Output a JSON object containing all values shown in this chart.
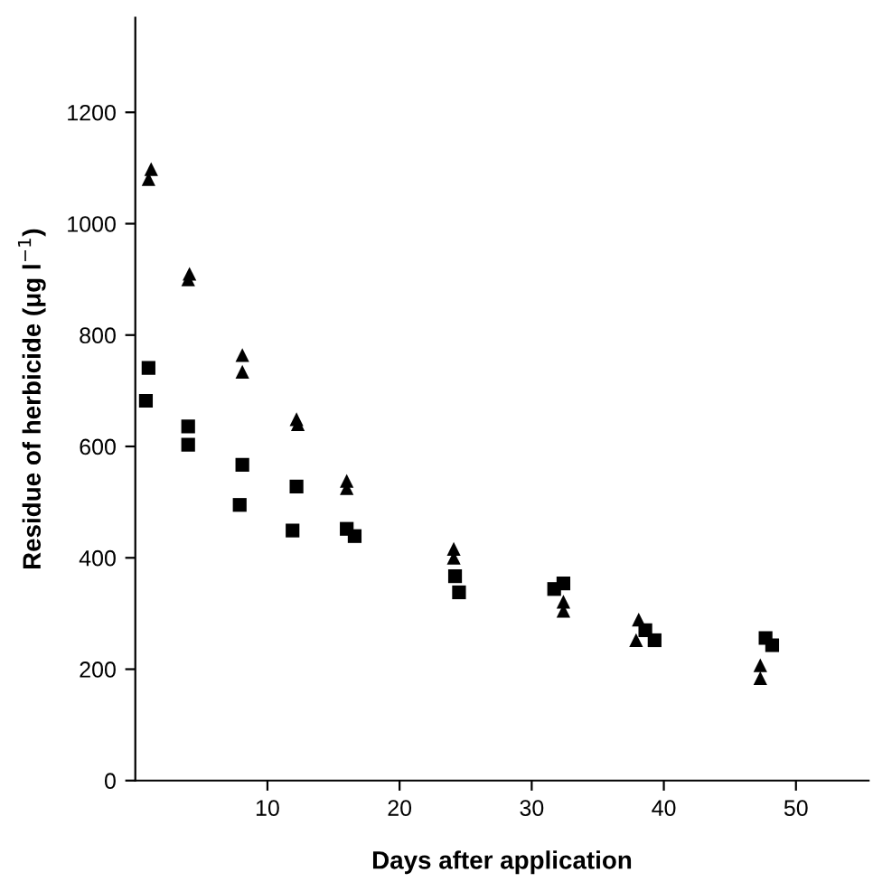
{
  "chart_data": {
    "type": "scatter",
    "xlabel": "Days after application",
    "ylabel": "Residue of herbicide (μg l$^{−1}$)",
    "xlim": [
      0,
      55.5
    ],
    "ylim": [
      0,
      1370
    ],
    "xticks": [
      10,
      20,
      30,
      40,
      50
    ],
    "yticks": [
      0,
      200,
      400,
      600,
      800,
      1000,
      1200
    ],
    "grid": false,
    "legend": false,
    "series": [
      {
        "color": "#000000",
        "marker": "triangle",
        "x": [
          1,
          1.2,
          4,
          4.1,
          8.1,
          8.1,
          12.2,
          12.3,
          16,
          16,
          24.1,
          24.1,
          32.4,
          32.4,
          38.1,
          37.9,
          47.3,
          47.3
        ],
        "values": [
          1080,
          1098,
          900,
          910,
          764,
          734,
          649,
          640,
          538,
          525,
          416,
          400,
          321,
          305,
          289,
          252,
          207,
          184
        ]
      },
      {
        "color": "#000000",
        "marker": "square",
        "x": [
          1,
          0.8,
          4,
          4,
          8.1,
          7.9,
          12.2,
          11.9,
          16,
          16.6,
          24.2,
          24.5,
          31.7,
          32.4,
          38.6,
          39.3,
          47.7,
          48.2
        ],
        "values": [
          741,
          682,
          636,
          603,
          567,
          495,
          528,
          449,
          452,
          439,
          367,
          338,
          344,
          354,
          270,
          252,
          256,
          243
        ]
      }
    ]
  }
}
